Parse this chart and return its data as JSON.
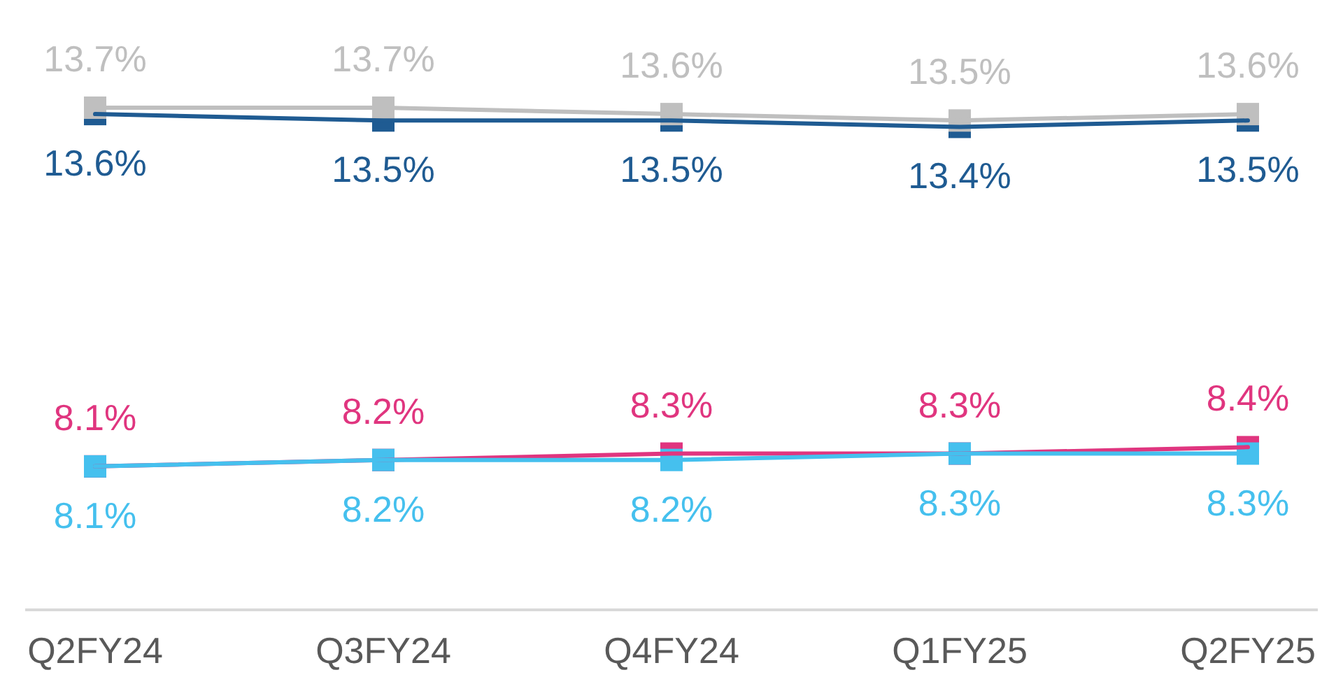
{
  "chart_data": {
    "type": "line",
    "categories": [
      "Q2FY24",
      "Q3FY24",
      "Q4FY24",
      "Q1FY25",
      "Q2FY25"
    ],
    "series": [
      {
        "color": "#1f5b92",
        "values": [
          13.6,
          13.5,
          13.5,
          13.4,
          13.5
        ],
        "value_labels": [
          "13.6%",
          "13.5%",
          "13.5%",
          "13.4%",
          "13.5%"
        ]
      },
      {
        "color": "#bfbfbf",
        "values": [
          13.7,
          13.7,
          13.6,
          13.5,
          13.6
        ],
        "value_labels": [
          "13.7%",
          "13.7%",
          "13.6%",
          "13.5%",
          "13.6%"
        ]
      },
      {
        "color": "#e0357f",
        "values": [
          8.1,
          8.2,
          8.3,
          8.3,
          8.4
        ],
        "value_labels": [
          "8.1%",
          "8.2%",
          "8.3%",
          "8.3%",
          "8.4%"
        ]
      },
      {
        "color": "#45c0ee",
        "values": [
          8.1,
          8.2,
          8.2,
          8.3,
          8.3
        ],
        "value_labels": [
          "8.1%",
          "8.2%",
          "8.2%",
          "8.3%",
          "8.3%"
        ]
      }
    ],
    "tick_labels": "x",
    "marker": "square",
    "line_style": "solid"
  }
}
